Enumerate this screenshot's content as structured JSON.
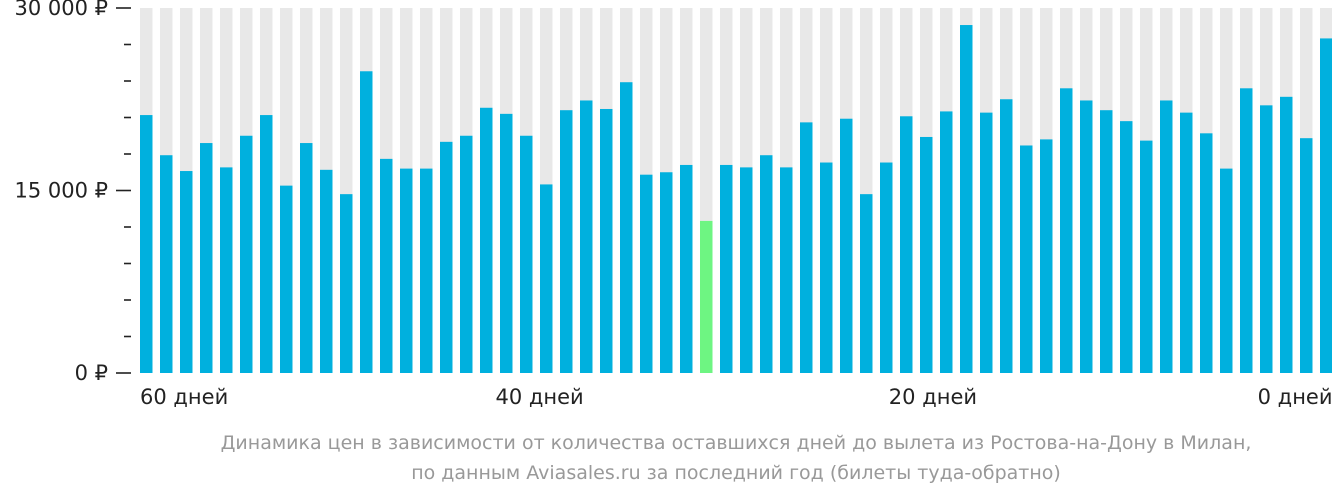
{
  "chart_data": {
    "type": "bar",
    "title": "",
    "xlabel": "",
    "ylabel": "",
    "ylim": [
      0,
      30000
    ],
    "y_ticks": [
      {
        "value": 30000,
        "label": "30 000 ₽"
      },
      {
        "value": 15000,
        "label": "15 000 ₽"
      },
      {
        "value": 0,
        "label": "0 ₽"
      }
    ],
    "y_minor_step": 3000,
    "x_ticks": [
      {
        "days": 60,
        "label": "60 дней"
      },
      {
        "days": 40,
        "label": "40 дней"
      },
      {
        "days": 20,
        "label": "20 дней"
      },
      {
        "days": 0,
        "label": "0 дней"
      }
    ],
    "days_from": 60,
    "days_to": 0,
    "values": [
      21200,
      17900,
      16600,
      18900,
      16900,
      19500,
      21200,
      15400,
      18900,
      16700,
      14700,
      24800,
      17600,
      16800,
      16800,
      19000,
      19500,
      21800,
      21300,
      19500,
      15500,
      21600,
      22400,
      21700,
      23900,
      16300,
      16500,
      17100,
      12500,
      17100,
      16900,
      17900,
      16900,
      20600,
      17300,
      20900,
      14700,
      17300,
      21100,
      19400,
      21500,
      28600,
      21400,
      22500,
      18700,
      19200,
      23400,
      22400,
      21600,
      20700,
      19100,
      22400,
      21400,
      19700,
      16800,
      23400,
      22000,
      22700,
      19300,
      27500
    ],
    "highlight_index": 28,
    "colors": {
      "bar": "#00b0de",
      "highlight": "#6ef582",
      "background_bar": "#e8e8e8"
    }
  },
  "caption": {
    "line1": "Динамика цен в зависимости от количества оставшихся дней до вылета из Ростова-на-Дону в Милан,",
    "line2": "по данным Aviasales.ru за последний год (билеты туда-обратно)"
  }
}
